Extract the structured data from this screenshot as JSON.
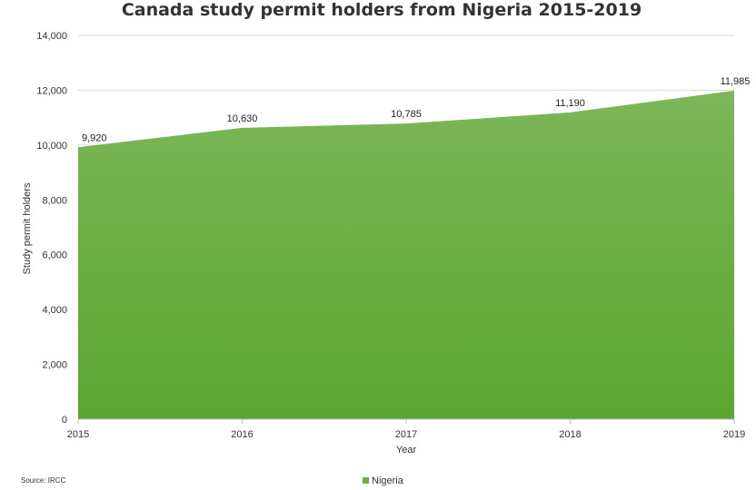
{
  "chart_data": {
    "type": "area",
    "title": "Canada study permit holders from Nigeria 2015-2019",
    "xlabel": "Year",
    "ylabel": "Study permit holders",
    "categories": [
      "2015",
      "2016",
      "2017",
      "2018",
      "2019"
    ],
    "series": [
      {
        "name": "Nigeria",
        "values": [
          9920,
          10630,
          10785,
          11190,
          11985
        ],
        "labels": [
          "9,920",
          "10,630",
          "10,785",
          "11,190",
          "11,985"
        ],
        "color": "#70ad47"
      }
    ],
    "ylim": [
      0,
      14000
    ],
    "yticks": [
      0,
      2000,
      4000,
      6000,
      8000,
      10000,
      12000,
      14000
    ],
    "ytick_labels": [
      "0",
      "2,000",
      "4,000",
      "6,000",
      "8,000",
      "10,000",
      "12,000",
      "14,000"
    ],
    "grid": true,
    "legend": "bottom",
    "source": "Source: IRCC"
  }
}
